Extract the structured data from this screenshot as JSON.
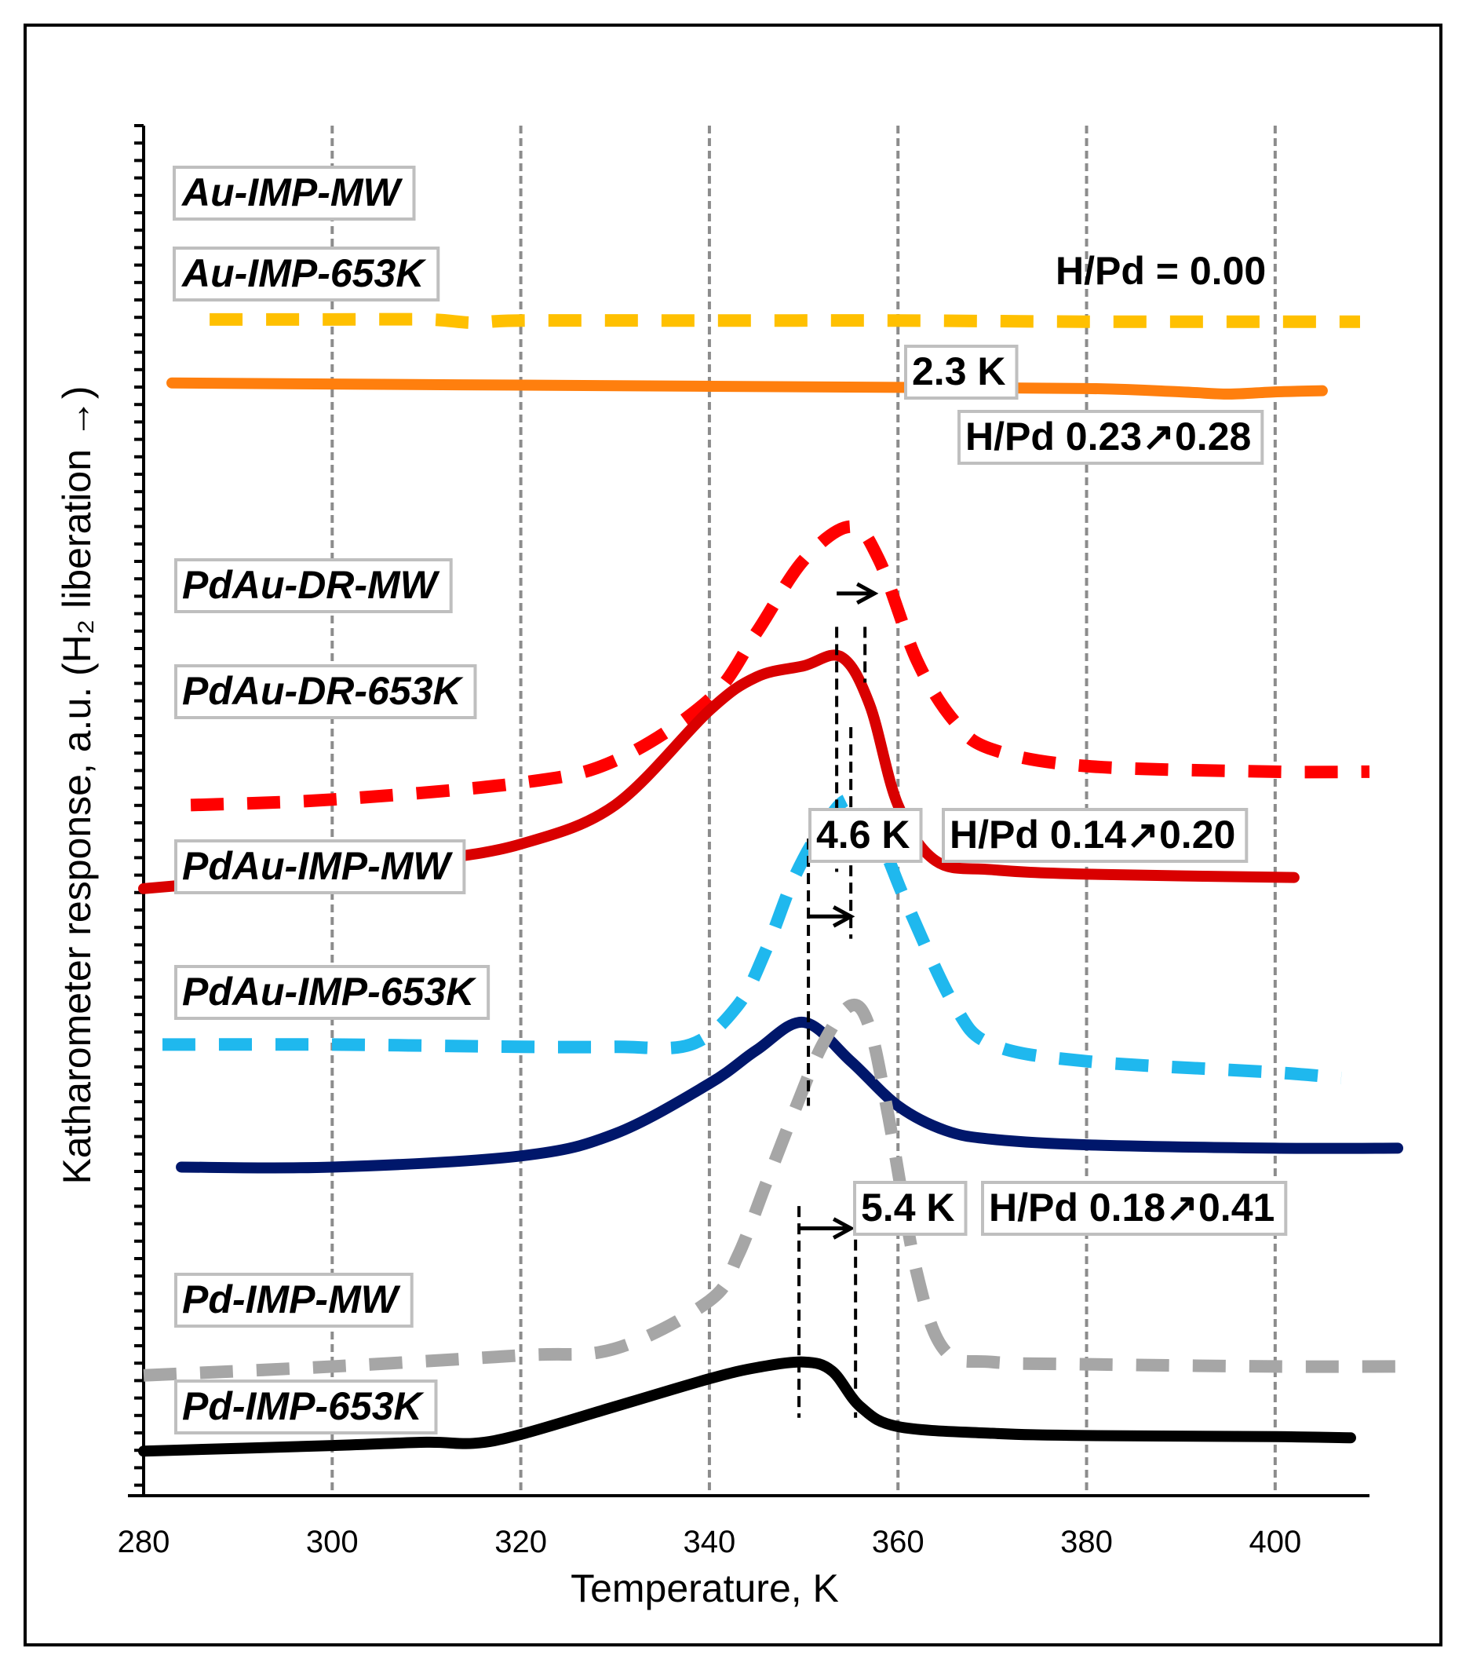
{
  "chart_data": {
    "type": "line",
    "title": "",
    "xlabel": "Temperature, K",
    "ylabel": "Katharometer response, a.u. (H₂ liberation →)",
    "xlim": [
      280,
      410
    ],
    "xticks": [
      "280",
      "300",
      "320",
      "340",
      "360",
      "380",
      "400"
    ],
    "grid": "vertical dashed",
    "series": [
      {
        "name": "Au-IMP-MW",
        "color": "#FFC000",
        "dash": true,
        "x": [
          287,
          300,
          310,
          315,
          320,
          340,
          360,
          380,
          400,
          409
        ],
        "y": [
          97.6,
          97.6,
          97.6,
          97.3,
          97.5,
          97.5,
          97.5,
          97.4,
          97.4,
          97.4
        ]
      },
      {
        "name": "Au-IMP-653K",
        "color": "#FF7F0E",
        "dash": false,
        "x": [
          283,
          300,
          320,
          340,
          360,
          380,
          390,
          395,
          400,
          405
        ],
        "y": [
          91.9,
          91.8,
          91.7,
          91.6,
          91.5,
          91.4,
          91.1,
          90.9,
          91.1,
          91.2
        ]
      },
      {
        "name": "PdAu-DR-MW",
        "color": "#FF0000",
        "dash": true,
        "x": [
          285,
          300,
          320,
          330,
          340,
          345,
          350,
          355,
          358,
          362,
          366,
          370,
          380,
          400,
          410
        ],
        "y": [
          54.0,
          54.5,
          56.0,
          58.0,
          63.5,
          69.5,
          76.0,
          79.0,
          76.0,
          67.0,
          61.5,
          59.0,
          57.5,
          57.0,
          57.0
        ]
      },
      {
        "name": "PdAu-DR-653K",
        "color": "#D90000",
        "dash": false,
        "x": [
          280,
          300,
          310,
          320,
          330,
          340,
          345,
          350,
          354,
          357,
          360,
          364,
          370,
          380,
          402
        ],
        "y": [
          46.5,
          48.0,
          49.0,
          50.5,
          54.0,
          62.5,
          65.5,
          66.5,
          67.3,
          63.0,
          54.0,
          49.0,
          48.2,
          47.8,
          47.5
        ]
      },
      {
        "name": "PdAu-IMP-MW",
        "color": "#1FB8EE",
        "dash": true,
        "x": [
          282,
          300,
          320,
          330,
          338,
          343,
          346,
          349,
          352,
          355,
          358,
          361,
          366,
          370,
          380,
          400,
          407
        ],
        "y": [
          32.5,
          32.5,
          32.3,
          32.3,
          32.5,
          36.0,
          41.0,
          47.5,
          52.0,
          54.5,
          51.0,
          45.0,
          36.0,
          32.5,
          31.0,
          30.0,
          29.5
        ]
      },
      {
        "name": "PdAu-IMP-653K",
        "color": "#00176B",
        "dash": false,
        "x": [
          284,
          300,
          320,
          330,
          340,
          345,
          350,
          355,
          360,
          365,
          370,
          380,
          400,
          413
        ],
        "y": [
          21.5,
          21.5,
          22.5,
          24.5,
          29.0,
          32.0,
          34.5,
          31.0,
          27.0,
          24.8,
          24.0,
          23.5,
          23.2,
          23.2
        ]
      },
      {
        "name": "Pd-IMP-MW",
        "color": "#A6A6A6",
        "dash": true,
        "x": [
          280,
          300,
          320,
          330,
          340,
          343,
          346,
          349,
          352,
          355,
          357,
          359,
          362,
          365,
          370,
          380,
          400,
          413
        ],
        "y": [
          2.8,
          3.6,
          4.6,
          5.2,
          9.5,
          13.5,
          20.0,
          26.5,
          32.5,
          36.0,
          34.0,
          26.0,
          12.0,
          5.0,
          4.0,
          3.8,
          3.6,
          3.6
        ]
      },
      {
        "name": "Pd-IMP-653K",
        "color": "#000000",
        "dash": false,
        "x": [
          280,
          300,
          310,
          315,
          320,
          330,
          340,
          345,
          350,
          353,
          356,
          360,
          370,
          380,
          400,
          408
        ],
        "y": [
          -4.0,
          -3.5,
          -3.2,
          -3.3,
          -2.5,
          0.0,
          2.5,
          3.5,
          4.0,
          3.2,
          0.0,
          -1.8,
          -2.4,
          -2.6,
          -2.7,
          -2.8
        ]
      }
    ],
    "labels": [
      {
        "text": "Au-IMP-MW"
      },
      {
        "text": "Au-IMP-653K"
      },
      {
        "text": "PdAu-DR-MW"
      },
      {
        "text": "PdAu-DR-653K"
      },
      {
        "text": "PdAu-IMP-MW"
      },
      {
        "text": "PdAu-IMP-653K"
      },
      {
        "text": "Pd-IMP-MW"
      },
      {
        "text": "Pd-IMP-653K"
      }
    ],
    "annotations": [
      {
        "text": "H/Pd = 0.00",
        "boxed": false
      },
      {
        "text": "2.3 K",
        "boxed": true
      },
      {
        "text": "H/Pd  0.23↗0.28",
        "boxed": true
      },
      {
        "text": "4.6 K",
        "boxed": true
      },
      {
        "text": "H/Pd  0.14↗0.20",
        "boxed": true
      },
      {
        "text": "5.4 K",
        "boxed": true
      },
      {
        "text": "H/Pd  0.18↗0.41",
        "boxed": true
      }
    ],
    "peak_markers": [
      {
        "x": 353.5,
        "y_top": 70,
        "y_bottom": 48
      },
      {
        "x": 356.5,
        "y_top": 70,
        "y_bottom": 65
      },
      {
        "x": 350.5,
        "y_top": 51,
        "y_bottom": 27
      },
      {
        "x": 355.0,
        "y_top": 61,
        "y_bottom": 42
      },
      {
        "x": 349.5,
        "y_top": 18,
        "y_bottom": -1
      },
      {
        "x": 355.5,
        "y_top": 15,
        "y_bottom": -1
      }
    ],
    "shift_arrows": [
      {
        "from": 353.5,
        "to": 357.5,
        "y": 73
      },
      {
        "from": 350.5,
        "to": 355.0,
        "y": 44
      },
      {
        "from": 349.5,
        "to": 355.0,
        "y": 16
      }
    ]
  }
}
